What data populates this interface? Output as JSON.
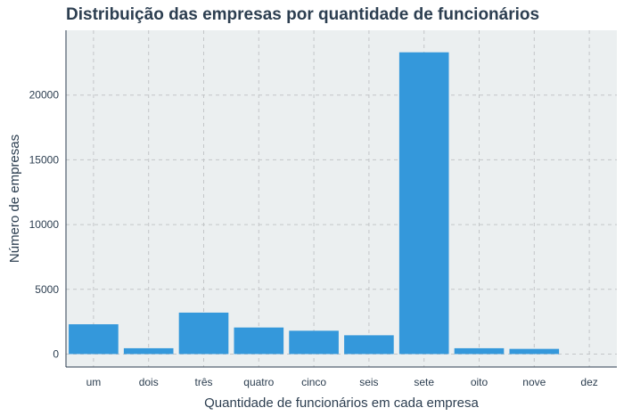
{
  "chart_data": {
    "type": "bar",
    "title": "Distribuição das empresas por quantidade de funcionários",
    "xlabel": "Quantidade de funcionários em cada empresa",
    "ylabel": "Número de empresas",
    "categories": [
      "um",
      "dois",
      "três",
      "quatro",
      "cinco",
      "seis",
      "sete",
      "oito",
      "nove",
      "dez"
    ],
    "values": [
      2300,
      450,
      3200,
      2050,
      1800,
      1450,
      23300,
      450,
      400,
      0
    ],
    "ylim": [
      -1000,
      25000
    ],
    "yticks": [
      0,
      5000,
      10000,
      15000,
      20000
    ],
    "grid": true,
    "colors": {
      "bar": "#3498db",
      "panel": "#ebeff0",
      "grid": "#c3c6c8",
      "text": "#2c3e50"
    }
  }
}
